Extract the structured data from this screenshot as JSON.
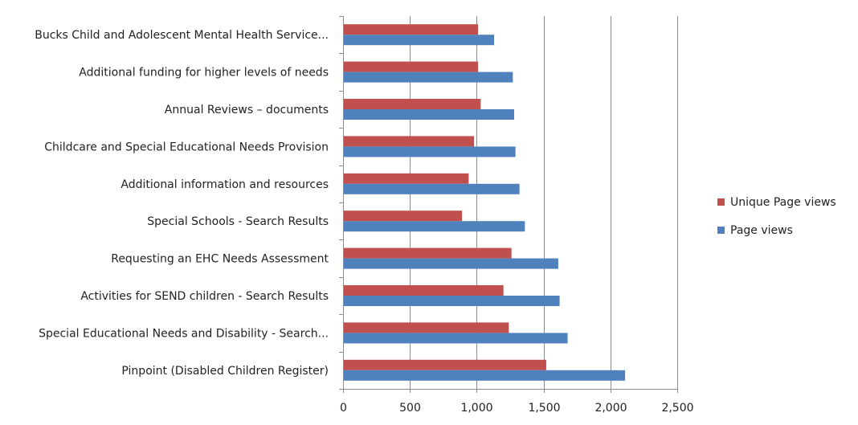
{
  "chart_data": {
    "type": "bar",
    "orientation": "horizontal",
    "categories": [
      "Pinpoint (Disabled Children Register)",
      "Special Educational Needs and Disability - Search...",
      "Activities for SEND children - Search Results",
      "Requesting an EHC Needs Assessment",
      "Special Schools - Search Results",
      "Additional information and resources",
      "Childcare and Special Educational Needs Provision",
      "Annual Reviews – documents",
      "Additional funding for higher levels of needs",
      "Bucks Child and Adolescent Mental Health Service..."
    ],
    "series": [
      {
        "name": "Unique Page views",
        "color": "#c0504d",
        "values": [
          1520,
          1240,
          1200,
          1260,
          890,
          940,
          980,
          1030,
          1010,
          1010
        ]
      },
      {
        "name": "Page views",
        "color": "#4f81bd",
        "values": [
          2110,
          1680,
          1620,
          1610,
          1360,
          1320,
          1290,
          1280,
          1270,
          1130
        ]
      }
    ],
    "x_ticks": [
      "0",
      "500",
      "1,000",
      "1,500",
      "2,000",
      "2,500"
    ],
    "xlim": [
      0,
      2500
    ],
    "grid": "vertical major gridlines",
    "legend_position": "right",
    "title": "",
    "xlabel": "",
    "ylabel": ""
  }
}
